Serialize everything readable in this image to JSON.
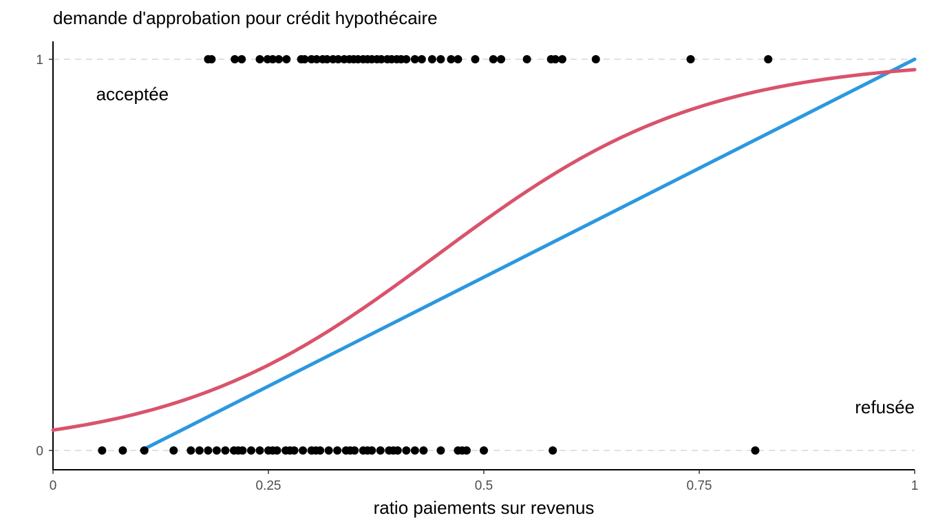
{
  "chart_data": {
    "type": "scatter",
    "title": "demande d'approbation pour crédit hypothécaire",
    "xlabel": "ratio paiements sur revenus",
    "ylabel": "",
    "xlim": [
      0,
      1
    ],
    "ylim": [
      -0.05,
      1.05
    ],
    "x_ticks": [
      {
        "value": 0,
        "label": "0"
      },
      {
        "value": 0.25,
        "label": "0.25"
      },
      {
        "value": 0.5,
        "label": "0.5"
      },
      {
        "value": 0.75,
        "label": "0.75"
      },
      {
        "value": 1,
        "label": "1"
      }
    ],
    "y_ticks": [
      {
        "value": 0,
        "label": "0"
      },
      {
        "value": 1,
        "label": "1"
      }
    ],
    "grid": "horizontal dashed at y = 0 and y = 1",
    "annotations": [
      {
        "text": "acceptée",
        "x": 0.05,
        "y": 0.895,
        "anchor": "start"
      },
      {
        "text": "refusée",
        "x": 1.0,
        "y": 0.095,
        "anchor": "end"
      }
    ],
    "points": {
      "color": "#000000",
      "y1_x": [
        0.18,
        0.184,
        0.211,
        0.219,
        0.24,
        0.249,
        0.255,
        0.262,
        0.271,
        0.288,
        0.292,
        0.3,
        0.306,
        0.313,
        0.318,
        0.325,
        0.331,
        0.338,
        0.344,
        0.349,
        0.354,
        0.36,
        0.365,
        0.37,
        0.376,
        0.381,
        0.388,
        0.393,
        0.399,
        0.404,
        0.41,
        0.42,
        0.428,
        0.44,
        0.45,
        0.462,
        0.47,
        0.49,
        0.511,
        0.52,
        0.55,
        0.578,
        0.583,
        0.591,
        0.63,
        0.74,
        0.83
      ],
      "y0_x": [
        0.057,
        0.081,
        0.106,
        0.14,
        0.16,
        0.17,
        0.18,
        0.19,
        0.2,
        0.21,
        0.215,
        0.22,
        0.23,
        0.24,
        0.25,
        0.255,
        0.26,
        0.27,
        0.275,
        0.28,
        0.29,
        0.3,
        0.305,
        0.31,
        0.32,
        0.33,
        0.34,
        0.345,
        0.35,
        0.36,
        0.365,
        0.37,
        0.38,
        0.39,
        0.395,
        0.4,
        0.41,
        0.42,
        0.43,
        0.45,
        0.47,
        0.475,
        0.48,
        0.5,
        0.58,
        0.815
      ]
    },
    "series": [
      {
        "type": "line",
        "color": "#2b98e0",
        "fit": "linear",
        "x": [
          0.1025,
          1.0
        ],
        "y": [
          0.0,
          1.0
        ]
      },
      {
        "type": "line",
        "color": "#d9536b",
        "fit": "logistic",
        "intercept": -2.9,
        "slope": 6.5,
        "x_range": [
          0,
          1
        ]
      }
    ]
  }
}
